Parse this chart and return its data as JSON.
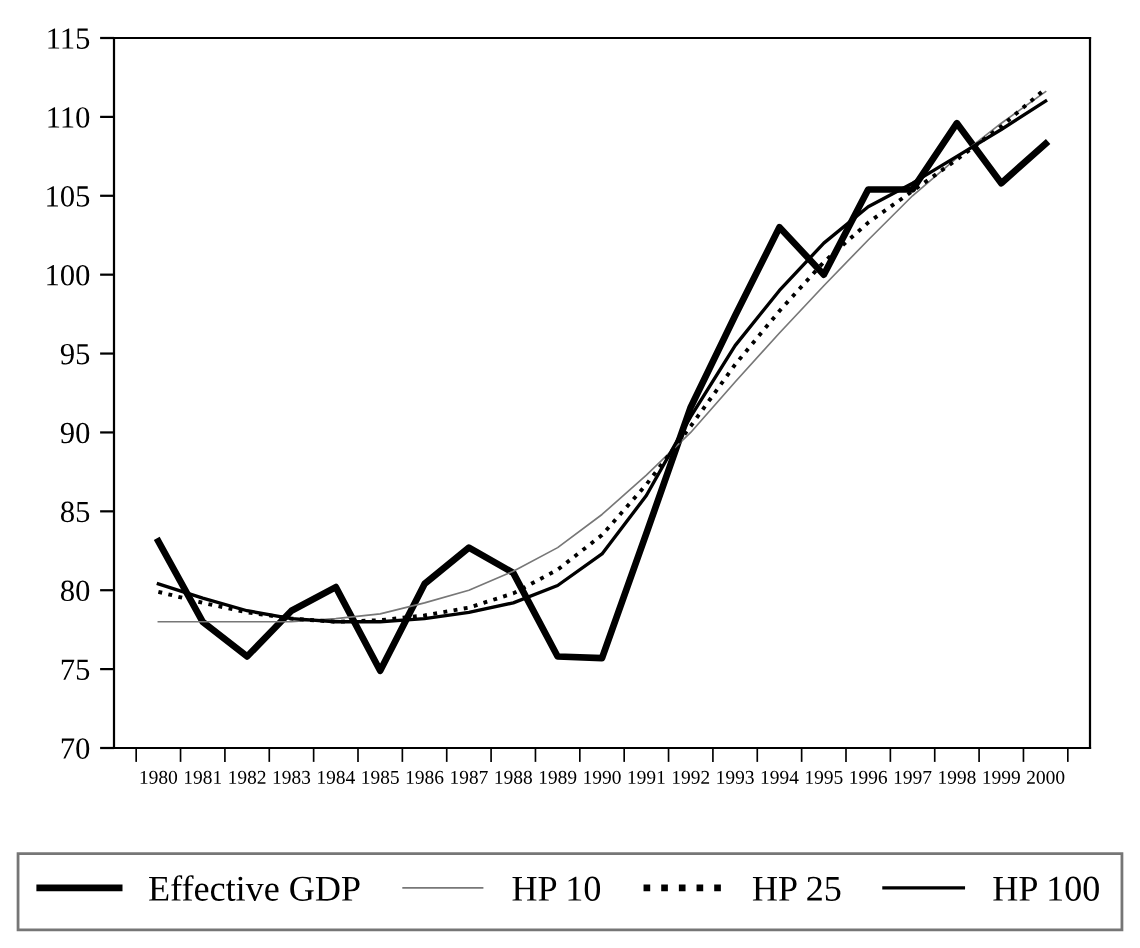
{
  "chart_data": {
    "type": "line",
    "categories": [
      "1980",
      "1981",
      "1982",
      "1983",
      "1984",
      "1985",
      "1986",
      "1987",
      "1988",
      "1989",
      "1990",
      "1991",
      "1992",
      "1993",
      "1994",
      "1995",
      "1996",
      "1997",
      "1998",
      "1999",
      "2000"
    ],
    "series": [
      {
        "name": "Effective GDP",
        "color": "#000000",
        "line_style": "solid",
        "values": [
          83.1,
          78.0,
          75.8,
          78.7,
          80.2,
          74.9,
          80.4,
          82.7,
          81.1,
          75.8,
          75.7,
          83.6,
          91.6,
          97.4,
          103.0,
          100.0,
          105.4,
          105.4,
          109.6,
          105.8,
          108.3
        ]
      },
      {
        "name": "HP 10",
        "color": "#777777",
        "line_style": "solid",
        "values": [
          78.0,
          78.0,
          78.0,
          78.0,
          78.2,
          78.5,
          79.2,
          80.0,
          81.2,
          82.7,
          84.8,
          87.3,
          90.0,
          93.2,
          96.3,
          99.3,
          102.2,
          105.0,
          107.4,
          109.6,
          111.6
        ]
      },
      {
        "name": "HP 25",
        "color": "#000000",
        "line_style": "dotted",
        "values": [
          79.9,
          79.2,
          78.6,
          78.2,
          78.0,
          78.1,
          78.4,
          78.9,
          79.8,
          81.3,
          83.5,
          86.7,
          90.4,
          94.3,
          97.7,
          100.8,
          103.3,
          105.3,
          107.3,
          109.4,
          111.8
        ]
      },
      {
        "name": "HP 100",
        "color": "#000000",
        "line_style": "solid",
        "values": [
          80.4,
          79.5,
          78.7,
          78.2,
          78.0,
          78.0,
          78.2,
          78.6,
          79.2,
          80.3,
          82.3,
          86.0,
          91.0,
          95.5,
          99.0,
          102.0,
          104.3,
          105.8,
          107.5,
          109.2,
          111.0
        ]
      }
    ],
    "ylim": [
      70,
      115
    ],
    "yticks": [
      70,
      75,
      80,
      85,
      90,
      95,
      100,
      105,
      110,
      115
    ],
    "grid": false,
    "legend": "bottom",
    "marker": "none"
  }
}
